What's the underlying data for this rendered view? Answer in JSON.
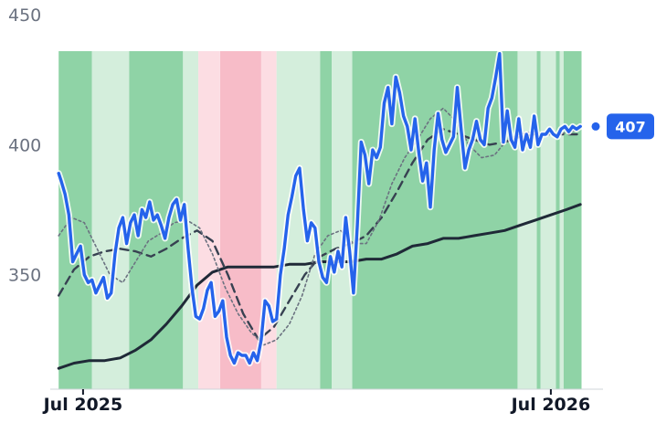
{
  "chart_data": {
    "type": "line",
    "title": "",
    "xlabel": "",
    "ylabel": "",
    "ylim": [
      306,
      450
    ],
    "xlim": [
      "2025-06-09",
      "2026-08-05"
    ],
    "y_ticks": [
      {
        "value": 350,
        "label": "350"
      },
      {
        "value": 400,
        "label": "400"
      },
      {
        "value": 450,
        "label": "450"
      }
    ],
    "x_ticks": [
      {
        "value": "2025-07-01",
        "label": "Jul 2025"
      },
      {
        "value": "2026-07-01",
        "label": "Jul 2026"
      }
    ],
    "grid": false,
    "colors": {
      "price": "#2563eb",
      "ma_long": "#1f2937",
      "ma_mid": "#374151",
      "ma_short": "#6b7280",
      "bullish_strong": "#8fd3a6",
      "bullish_light": "#d4eedc",
      "bearish_strong": "#f7bcc8",
      "bearish_light": "#fcdde3",
      "badge": "#2563eb"
    },
    "current_price": {
      "value": 407,
      "label": "407"
    },
    "regime_bands": [
      {
        "start": "2025-06-12",
        "end": "2025-07-08",
        "state": "bullish_strong"
      },
      {
        "start": "2025-07-08",
        "end": "2025-08-06",
        "state": "bullish_light"
      },
      {
        "start": "2025-08-06",
        "end": "2025-09-17",
        "state": "bullish_strong"
      },
      {
        "start": "2025-09-17",
        "end": "2025-09-29",
        "state": "bullish_light"
      },
      {
        "start": "2025-09-29",
        "end": "2025-10-16",
        "state": "bearish_light"
      },
      {
        "start": "2025-10-16",
        "end": "2025-11-17",
        "state": "bearish_strong"
      },
      {
        "start": "2025-11-17",
        "end": "2025-11-29",
        "state": "bearish_light"
      },
      {
        "start": "2025-11-29",
        "end": "2026-01-02",
        "state": "bullish_light"
      },
      {
        "start": "2026-01-02",
        "end": "2026-01-11",
        "state": "bullish_strong"
      },
      {
        "start": "2026-01-11",
        "end": "2026-01-27",
        "state": "bullish_light"
      },
      {
        "start": "2026-01-27",
        "end": "2026-06-05",
        "state": "bullish_strong"
      },
      {
        "start": "2026-06-05",
        "end": "2026-06-20",
        "state": "bullish_light"
      },
      {
        "start": "2026-06-20",
        "end": "2026-06-23",
        "state": "bullish_strong"
      },
      {
        "start": "2026-06-23",
        "end": "2026-07-05",
        "state": "bullish_light"
      },
      {
        "start": "2026-07-05",
        "end": "2026-07-08",
        "state": "bullish_strong"
      },
      {
        "start": "2026-07-08",
        "end": "2026-07-11",
        "state": "bullish_light"
      },
      {
        "start": "2026-07-11",
        "end": "2026-07-25",
        "state": "bullish_strong"
      }
    ],
    "series": [
      {
        "role": "price",
        "x": [
          "2025-06-12",
          "2025-06-14",
          "2025-06-17",
          "2025-06-20",
          "2025-06-23",
          "2025-06-26",
          "2025-06-29",
          "2025-07-02",
          "2025-07-05",
          "2025-07-08",
          "2025-07-11",
          "2025-07-14",
          "2025-07-17",
          "2025-07-20",
          "2025-07-23",
          "2025-07-26",
          "2025-07-29",
          "2025-08-01",
          "2025-08-04",
          "2025-08-07",
          "2025-08-10",
          "2025-08-13",
          "2025-08-16",
          "2025-08-19",
          "2025-08-22",
          "2025-08-25",
          "2025-08-28",
          "2025-08-31",
          "2025-09-03",
          "2025-09-06",
          "2025-09-09",
          "2025-09-12",
          "2025-09-15",
          "2025-09-18",
          "2025-09-21",
          "2025-09-24",
          "2025-09-27",
          "2025-09-30",
          "2025-10-03",
          "2025-10-06",
          "2025-10-09",
          "2025-10-12",
          "2025-10-15",
          "2025-10-18",
          "2025-10-21",
          "2025-10-24",
          "2025-10-27",
          "2025-10-30",
          "2025-11-02",
          "2025-11-05",
          "2025-11-08",
          "2025-11-11",
          "2025-11-14",
          "2025-11-17",
          "2025-11-20",
          "2025-11-23",
          "2025-11-26",
          "2025-11-29",
          "2025-12-02",
          "2025-12-05",
          "2025-12-08",
          "2025-12-11",
          "2025-12-14",
          "2025-12-17",
          "2025-12-20",
          "2025-12-23",
          "2025-12-26",
          "2025-12-29",
          "2026-01-01",
          "2026-01-04",
          "2026-01-07",
          "2026-01-10",
          "2026-01-13",
          "2026-01-16",
          "2026-01-19",
          "2026-01-22",
          "2026-01-25",
          "2026-01-28",
          "2026-01-31",
          "2026-02-03",
          "2026-02-06",
          "2026-02-09",
          "2026-02-12",
          "2026-02-15",
          "2026-02-18",
          "2026-02-21",
          "2026-02-24",
          "2026-02-27",
          "2026-03-02",
          "2026-03-05",
          "2026-03-08",
          "2026-03-11",
          "2026-03-14",
          "2026-03-17",
          "2026-03-20",
          "2026-03-23",
          "2026-03-26",
          "2026-03-29",
          "2026-04-01",
          "2026-04-04",
          "2026-04-07",
          "2026-04-10",
          "2026-04-13",
          "2026-04-16",
          "2026-04-19",
          "2026-04-22",
          "2026-04-25",
          "2026-04-28",
          "2026-05-01",
          "2026-05-04",
          "2026-05-07",
          "2026-05-10",
          "2026-05-13",
          "2026-05-16",
          "2026-05-19",
          "2026-05-22",
          "2026-05-25",
          "2026-05-28",
          "2026-05-31",
          "2026-06-03",
          "2026-06-06",
          "2026-06-09",
          "2026-06-12",
          "2026-06-15",
          "2026-06-18",
          "2026-06-21",
          "2026-06-24",
          "2026-06-27",
          "2026-06-30",
          "2026-07-03",
          "2026-07-06",
          "2026-07-09",
          "2026-07-12",
          "2026-07-15",
          "2026-07-18",
          "2026-07-21",
          "2026-07-24"
        ],
        "values": [
          389,
          386,
          381,
          373,
          355,
          358,
          361,
          350,
          347,
          348,
          343,
          346,
          349,
          341,
          343,
          358,
          368,
          372,
          362,
          370,
          373,
          365,
          375,
          372,
          378,
          371,
          373,
          369,
          364,
          372,
          377,
          379,
          371,
          377,
          360,
          345,
          334,
          333,
          337,
          344,
          347,
          334,
          336,
          340,
          326,
          319,
          316,
          320,
          319,
          319,
          316,
          320,
          317,
          325,
          340,
          338,
          332,
          333,
          350,
          360,
          373,
          380,
          388,
          391,
          375,
          363,
          370,
          368,
          355,
          349,
          347,
          357,
          351,
          359,
          353,
          372,
          359,
          343,
          369,
          401,
          396,
          385,
          398,
          395,
          399,
          416,
          422,
          408,
          426,
          420,
          411,
          407,
          398,
          410,
          397,
          386,
          393,
          376,
          398,
          412,
          402,
          397,
          400,
          403,
          422,
          406,
          391,
          398,
          402,
          409,
          402,
          400,
          414,
          418,
          426,
          435,
          401,
          413,
          402,
          399,
          410,
          398,
          404,
          399,
          411,
          400,
          404,
          404,
          406,
          404,
          403,
          406,
          407,
          405,
          407,
          406,
          407
        ],
        "style": "solid"
      },
      {
        "role": "ma_short",
        "x": [
          "2025-06-12",
          "2025-06-22",
          "2025-07-02",
          "2025-07-12",
          "2025-07-22",
          "2025-08-01",
          "2025-08-11",
          "2025-08-21",
          "2025-08-31",
          "2025-09-10",
          "2025-09-20",
          "2025-09-30",
          "2025-10-10",
          "2025-10-20",
          "2025-10-30",
          "2025-11-09",
          "2025-11-19",
          "2025-11-29",
          "2025-12-09",
          "2025-12-19",
          "2025-12-29",
          "2026-01-08",
          "2026-01-18",
          "2026-01-28",
          "2026-02-07",
          "2026-02-17",
          "2026-02-27",
          "2026-03-09",
          "2026-03-19",
          "2026-03-29",
          "2026-04-08",
          "2026-04-18",
          "2026-04-28",
          "2026-05-08",
          "2026-05-18",
          "2026-05-28",
          "2026-06-07",
          "2026-06-17",
          "2026-06-27",
          "2026-07-07",
          "2026-07-17",
          "2026-07-24"
        ],
        "values": [
          365,
          372,
          370,
          360,
          350,
          347,
          355,
          363,
          366,
          370,
          371,
          368,
          358,
          345,
          335,
          328,
          323,
          325,
          331,
          342,
          358,
          365,
          367,
          362,
          362,
          371,
          385,
          395,
          402,
          410,
          414,
          409,
          400,
          395,
          396,
          402,
          404,
          405,
          404,
          404,
          405,
          406
        ],
        "style": "dotted"
      },
      {
        "role": "ma_mid",
        "x": [
          "2025-06-12",
          "2025-06-24",
          "2025-07-06",
          "2025-07-18",
          "2025-07-30",
          "2025-08-11",
          "2025-08-23",
          "2025-09-04",
          "2025-09-16",
          "2025-09-28",
          "2025-10-10",
          "2025-10-22",
          "2025-11-03",
          "2025-11-15",
          "2025-11-27",
          "2025-12-09",
          "2025-12-21",
          "2026-01-02",
          "2026-01-14",
          "2026-01-26",
          "2026-02-07",
          "2026-02-19",
          "2026-03-03",
          "2026-03-15",
          "2026-03-27",
          "2026-04-08",
          "2026-04-20",
          "2026-05-02",
          "2026-05-14",
          "2026-05-26",
          "2026-06-07",
          "2026-06-19",
          "2026-07-01",
          "2026-07-13",
          "2026-07-24"
        ],
        "values": [
          342,
          352,
          357,
          359,
          360,
          359,
          357,
          360,
          364,
          367,
          363,
          350,
          335,
          325,
          330,
          340,
          350,
          357,
          360,
          362,
          365,
          372,
          382,
          393,
          402,
          406,
          404,
          402,
          400,
          401,
          403,
          404,
          404,
          404,
          404
        ],
        "style": "dashed"
      },
      {
        "role": "ma_long",
        "x": [
          "2025-06-12",
          "2025-06-24",
          "2025-07-06",
          "2025-07-18",
          "2025-07-30",
          "2025-08-11",
          "2025-08-23",
          "2025-09-04",
          "2025-09-16",
          "2025-09-28",
          "2025-10-10",
          "2025-10-22",
          "2025-11-03",
          "2025-11-15",
          "2025-11-27",
          "2025-12-09",
          "2025-12-21",
          "2026-01-02",
          "2026-01-14",
          "2026-01-26",
          "2026-02-07",
          "2026-02-19",
          "2026-03-03",
          "2026-03-15",
          "2026-03-27",
          "2026-04-08",
          "2026-04-20",
          "2026-05-02",
          "2026-05-14",
          "2026-05-26",
          "2026-06-07",
          "2026-06-19",
          "2026-07-01",
          "2026-07-13",
          "2026-07-24"
        ],
        "values": [
          314,
          316,
          317,
          317,
          318,
          321,
          325,
          331,
          338,
          346,
          351,
          353,
          353,
          353,
          353,
          354,
          354,
          355,
          355,
          355,
          356,
          356,
          358,
          361,
          362,
          364,
          364,
          365,
          366,
          367,
          369,
          371,
          373,
          375,
          377
        ],
        "style": "solid"
      }
    ]
  }
}
